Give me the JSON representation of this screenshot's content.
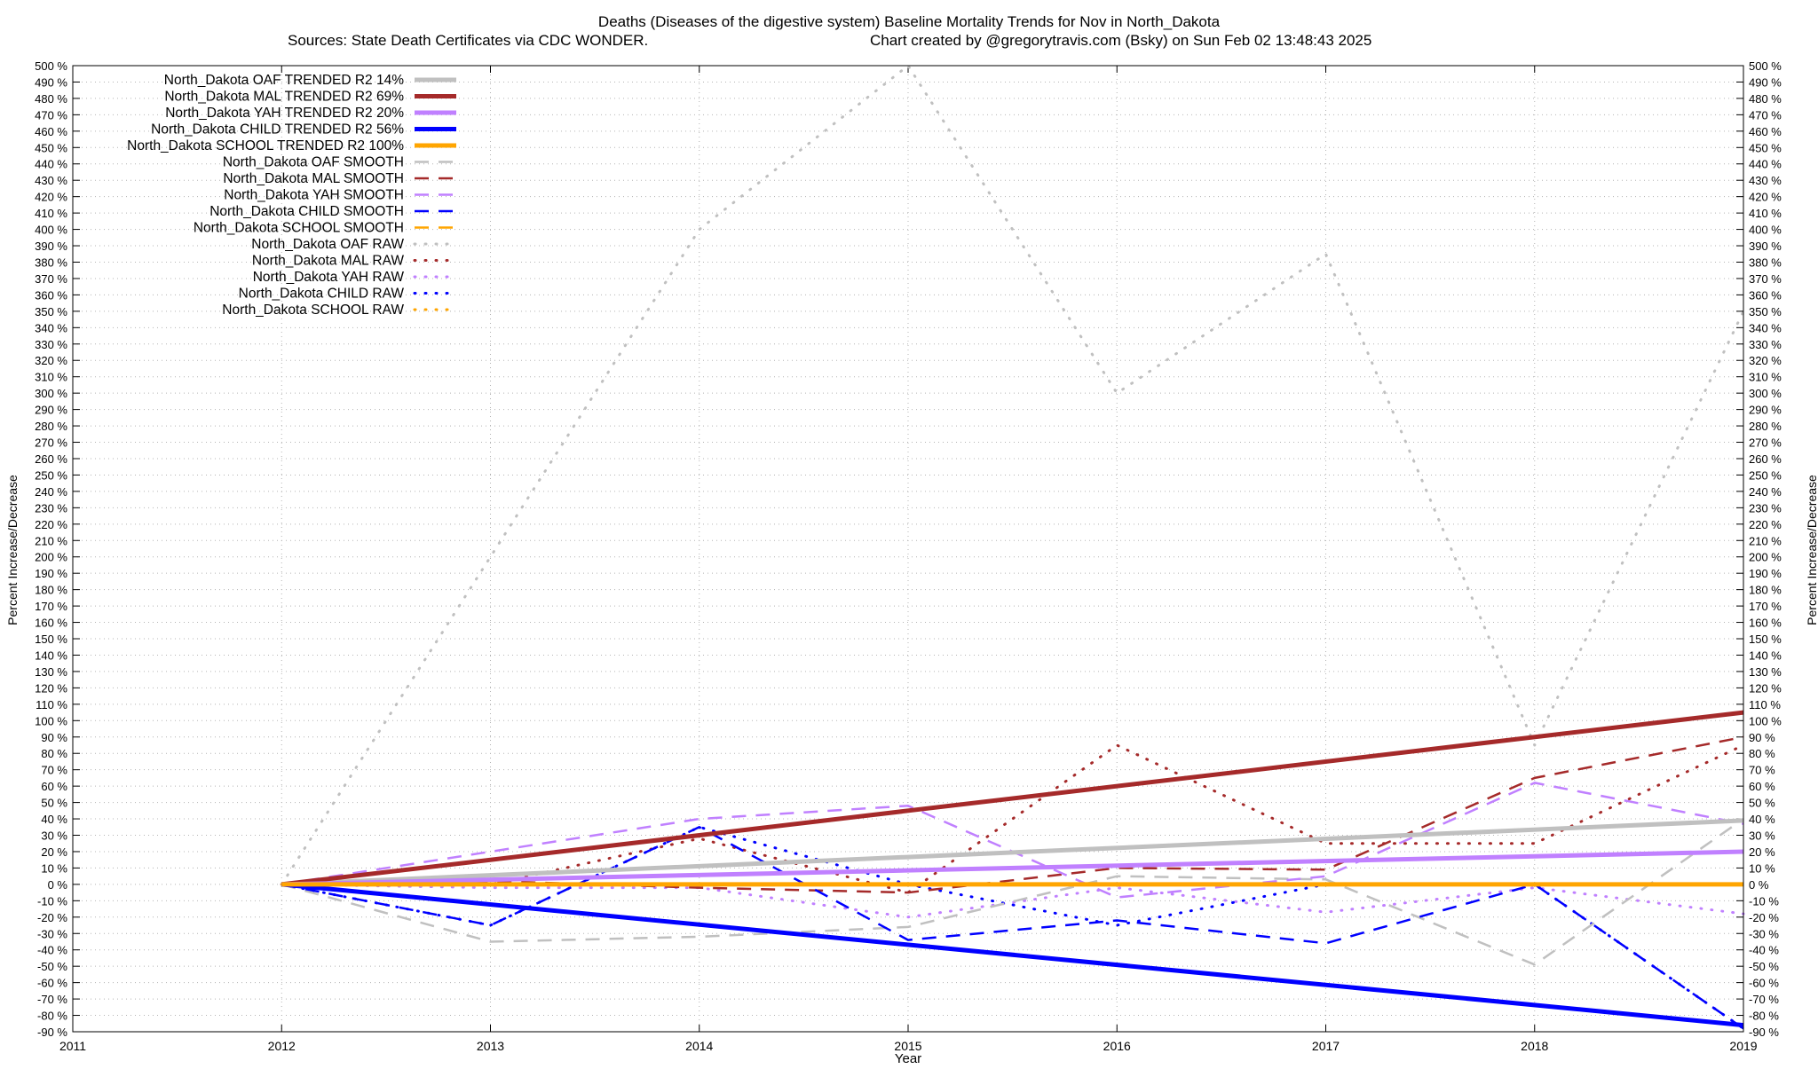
{
  "chart_data": {
    "type": "line",
    "title": "Deaths (Diseases of the digestive system)  Baseline Mortality Trends for Nov in North_Dakota",
    "subtitle_left": "Sources: State Death Certificates via CDC WONDER.",
    "subtitle_right": "Chart created by @gregorytravis.com (Bsky) on Sun Feb 02 13:48:43 2025",
    "xlabel": "Year",
    "ylabel": "Percent Increase/Decrease",
    "xlim": [
      2011,
      2019
    ],
    "ylim": [
      -90,
      500
    ],
    "x_ticks": [
      2011,
      2012,
      2013,
      2014,
      2015,
      2016,
      2017,
      2018,
      2019
    ],
    "y_tick_step": 10,
    "y_tick_suffix": " %",
    "grid": true,
    "legend_position": "top-left",
    "series": [
      {
        "name": "North_Dakota OAF TRENDED R2  14%",
        "style": "trend",
        "color": "#c0c0c0",
        "x": [
          2012,
          2019
        ],
        "y": [
          0,
          39
        ]
      },
      {
        "name": "North_Dakota MAL TRENDED R2  69%",
        "style": "trend",
        "color": "#a52a2a",
        "x": [
          2012,
          2019
        ],
        "y": [
          0,
          105
        ]
      },
      {
        "name": "North_Dakota YAH TRENDED R2  20%",
        "style": "trend",
        "color": "#c080ff",
        "x": [
          2012,
          2019
        ],
        "y": [
          0,
          20
        ]
      },
      {
        "name": "North_Dakota CHILD TRENDED R2  56%",
        "style": "trend",
        "color": "#0000ff",
        "x": [
          2012,
          2019
        ],
        "y": [
          0,
          -86
        ]
      },
      {
        "name": "North_Dakota SCHOOL TRENDED R2 100%",
        "style": "trend",
        "color": "#ffa500",
        "x": [
          2012,
          2019
        ],
        "y": [
          0,
          0
        ]
      },
      {
        "name": "North_Dakota OAF SMOOTH",
        "style": "smooth",
        "color": "#c0c0c0",
        "x": [
          2012,
          2013,
          2014,
          2015,
          2016,
          2017,
          2018,
          2019
        ],
        "y": [
          0,
          -35,
          -32,
          -26,
          5,
          3,
          -49,
          40
        ]
      },
      {
        "name": "North_Dakota MAL SMOOTH",
        "style": "smooth",
        "color": "#a52a2a",
        "x": [
          2012,
          2013,
          2014,
          2015,
          2016,
          2017,
          2018,
          2019
        ],
        "y": [
          0,
          2,
          -2,
          -5,
          10,
          9,
          65,
          90
        ]
      },
      {
        "name": "North_Dakota YAH SMOOTH",
        "style": "smooth",
        "color": "#c080ff",
        "x": [
          2012,
          2013,
          2014,
          2015,
          2016,
          2017,
          2018,
          2019
        ],
        "y": [
          0,
          20,
          40,
          48,
          -8,
          5,
          62,
          37
        ]
      },
      {
        "name": "North_Dakota CHILD SMOOTH",
        "style": "smooth",
        "color": "#0000ff",
        "x": [
          2012,
          2013,
          2014,
          2015,
          2016,
          2017,
          2018,
          2019
        ],
        "y": [
          0,
          -25,
          35,
          -34,
          -22,
          -36,
          0,
          -88
        ]
      },
      {
        "name": "North_Dakota SCHOOL SMOOTH",
        "style": "smooth",
        "color": "#ffa500",
        "x": [
          2012,
          2013,
          2014,
          2015,
          2016,
          2017,
          2018,
          2019
        ],
        "y": [
          0,
          0,
          0,
          0,
          0,
          0,
          0,
          0
        ]
      },
      {
        "name": "North_Dakota OAF RAW",
        "style": "raw",
        "color": "#c0c0c0",
        "x": [
          2012,
          2013,
          2014,
          2015,
          2016,
          2017,
          2018,
          2019
        ],
        "y": [
          0,
          200,
          400,
          500,
          300,
          385,
          85,
          350
        ]
      },
      {
        "name": "North_Dakota MAL RAW",
        "style": "raw",
        "color": "#a52a2a",
        "x": [
          2012,
          2013,
          2014,
          2015,
          2016,
          2017,
          2018,
          2019
        ],
        "y": [
          0,
          0,
          28,
          -5,
          85,
          25,
          25,
          85
        ]
      },
      {
        "name": "North_Dakota YAH RAW",
        "style": "raw",
        "color": "#c080ff",
        "x": [
          2012,
          2013,
          2014,
          2015,
          2016,
          2017,
          2018,
          2019
        ],
        "y": [
          0,
          -2,
          -2,
          -20,
          -2,
          -17,
          -2,
          -18
        ]
      },
      {
        "name": "North_Dakota CHILD RAW",
        "style": "raw",
        "color": "#0000ff",
        "x": [
          2012,
          2013,
          2014,
          2015,
          2016,
          2017,
          2018,
          2019
        ],
        "y": [
          0,
          -25,
          35,
          0,
          -25,
          0,
          0,
          -88
        ]
      },
      {
        "name": "North_Dakota SCHOOL RAW",
        "style": "raw",
        "color": "#ffa500",
        "x": [
          2012,
          2013,
          2014,
          2015,
          2016,
          2017,
          2018,
          2019
        ],
        "y": [
          0,
          0,
          0,
          0,
          0,
          0,
          0,
          0
        ]
      }
    ]
  }
}
